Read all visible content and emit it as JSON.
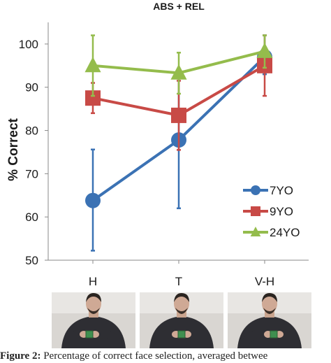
{
  "chart_data": {
    "type": "line",
    "title": "ABS + REL",
    "xlabel": "",
    "ylabel": "% Correct",
    "categories": [
      "H",
      "T",
      "V-H"
    ],
    "ylim": [
      50,
      105
    ],
    "yticks": [
      50,
      60,
      70,
      80,
      90,
      100
    ],
    "legend_position": "right",
    "series": [
      {
        "name": "7YO",
        "color": "#3b72b4",
        "marker": "circle",
        "values": [
          63.8,
          77.8,
          97.0
        ],
        "err_low": [
          52.2,
          62.0,
          93.0
        ],
        "err_high": [
          75.6,
          93.0,
          102.0
        ]
      },
      {
        "name": "9YO",
        "color": "#c84a46",
        "marker": "square",
        "values": [
          87.5,
          83.5,
          95.0
        ],
        "err_low": [
          84.0,
          75.5,
          88.0
        ],
        "err_high": [
          91.0,
          91.5,
          102.0
        ]
      },
      {
        "name": "24YO",
        "color": "#94bc4c",
        "marker": "triangle",
        "values": [
          95.0,
          93.3,
          98.3
        ],
        "err_low": [
          88.0,
          88.5,
          94.5
        ],
        "err_high": [
          102.0,
          98.0,
          102.0
        ]
      }
    ]
  },
  "photos": [
    {
      "label": "",
      "icon": "person-holding-cube-photo"
    },
    {
      "label": "",
      "icon": "person-holding-cube-photo"
    },
    {
      "label": "",
      "icon": "person-holding-cube-photo"
    }
  ],
  "caption": {
    "bold": "Figure 2:",
    "text": " Percentage of correct face selection, averaged betwee"
  }
}
